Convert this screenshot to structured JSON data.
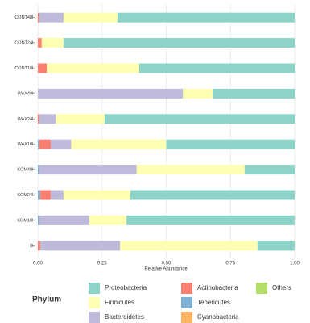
{
  "chart_data": {
    "type": "stacked_barh",
    "categories": [
      "CONT48H",
      "CONT24H",
      "CONT10H",
      "WAX48H",
      "WAX24H",
      "WAX10H",
      "KOM48H",
      "KOM24H",
      "KOM10H",
      "0H"
    ],
    "series": [
      {
        "name": "Proteobacteria",
        "color": "#8dd3c7",
        "values": [
          0.69,
          0.9,
          0.605,
          0.32,
          0.74,
          0.5,
          0.195,
          0.64,
          0.655,
          0.145
        ]
      },
      {
        "name": "Firmicutes",
        "color": "#ffffb3",
        "values": [
          0.21,
          0.085,
          0.36,
          0.115,
          0.19,
          0.37,
          0.42,
          0.26,
          0.145,
          0.535
        ]
      },
      {
        "name": "Bacteroidetes",
        "color": "#bebada",
        "values": [
          0.095,
          0,
          0,
          0.565,
          0.065,
          0.08,
          0.38,
          0.05,
          0.195,
          0.31
        ]
      },
      {
        "name": "Actinobacteria",
        "color": "#fb8072",
        "values": [
          0.005,
          0.015,
          0.035,
          0,
          0.005,
          0.045,
          0,
          0.04,
          0,
          0.01
        ]
      },
      {
        "name": "Tenericutes",
        "color": "#80b1d3",
        "values": [
          0,
          0,
          0,
          0,
          0,
          0.005,
          0.005,
          0.01,
          0.005,
          0
        ]
      },
      {
        "name": "Cyanobacteria",
        "color": "#fdb462",
        "values": [
          0,
          0,
          0,
          0,
          0,
          0,
          0,
          0,
          0,
          0
        ]
      },
      {
        "name": "Others",
        "color": "#b3de69",
        "values": [
          0,
          0,
          0,
          0,
          0,
          0,
          0,
          0,
          0,
          0
        ]
      }
    ],
    "xlabel": "Relative Abundance",
    "legend_title": "Phylum",
    "xlim": [
      0,
      1
    ],
    "xticks": [
      {
        "value": 0,
        "label": "0.00"
      },
      {
        "value": 0.25,
        "label": "0.25"
      },
      {
        "value": 0.5,
        "label": "0.50"
      },
      {
        "value": 0.75,
        "label": "0.75"
      },
      {
        "value": 1,
        "label": "1.00"
      }
    ],
    "grid": true
  }
}
